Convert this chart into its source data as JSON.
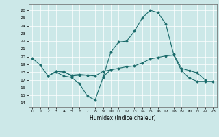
{
  "xlabel": "Humidex (Indice chaleur)",
  "xlim": [
    -0.5,
    23.5
  ],
  "ylim": [
    13.5,
    26.8
  ],
  "yticks": [
    14,
    15,
    16,
    17,
    18,
    19,
    20,
    21,
    22,
    23,
    24,
    25,
    26
  ],
  "xticks": [
    0,
    1,
    2,
    3,
    4,
    5,
    6,
    7,
    8,
    9,
    10,
    11,
    12,
    13,
    14,
    15,
    16,
    17,
    18,
    19,
    20,
    21,
    22,
    23
  ],
  "bg_color": "#cce8e8",
  "line_color": "#1a6b6b",
  "series": [
    [
      19.8,
      18.9,
      17.5,
      18.0,
      17.5,
      17.3,
      16.5,
      14.9,
      14.4,
      17.3,
      20.6,
      21.9,
      22.0,
      23.3,
      25.0,
      26.0,
      25.7,
      24.2,
      20.3,
      18.5,
      18.2,
      17.9,
      17.0,
      null
    ],
    [
      null,
      null,
      17.5,
      18.1,
      18.1,
      17.5,
      17.6,
      17.6,
      17.5,
      18.1,
      18.3,
      18.5,
      18.7,
      18.8,
      19.2,
      19.7,
      19.9,
      20.1,
      20.2,
      18.2,
      17.2,
      16.8,
      16.8,
      16.8
    ],
    [
      null,
      null,
      null,
      18.1,
      18.0,
      17.6,
      17.7,
      17.6,
      null,
      null,
      null,
      null,
      null,
      null,
      null,
      null,
      null,
      null,
      null,
      null,
      null,
      null,
      null,
      null
    ],
    [
      null,
      null,
      null,
      null,
      null,
      null,
      null,
      null,
      null,
      17.4,
      18.3,
      null,
      null,
      null,
      null,
      null,
      null,
      null,
      null,
      null,
      null,
      null,
      null,
      null
    ]
  ]
}
